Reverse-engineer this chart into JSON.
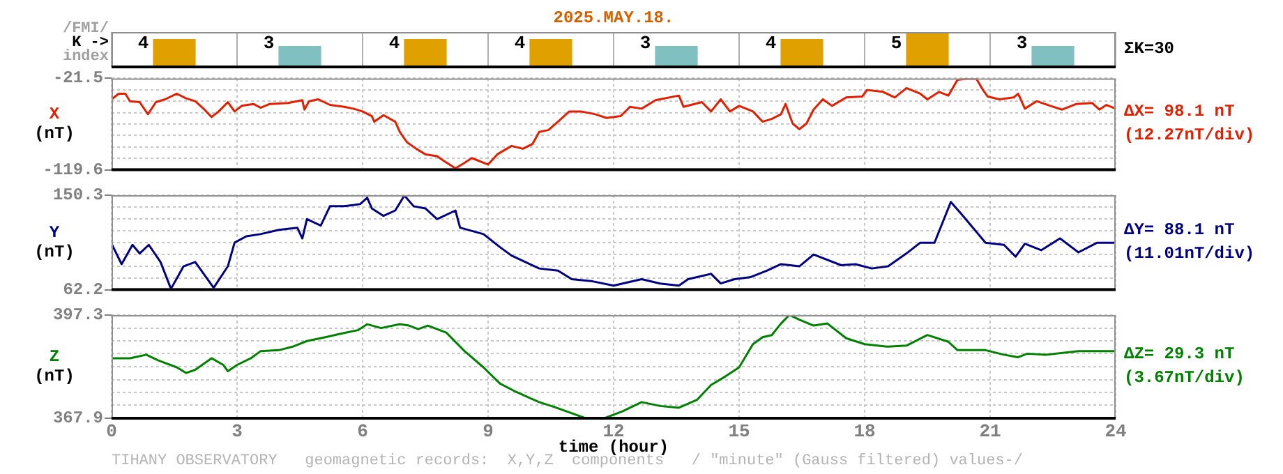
{
  "chart_data": [
    {
      "type": "bar",
      "title": "2025.MAY.18.",
      "ylabel": "/FMI/\nK ->\nindex",
      "categories": [
        null,
        null,
        null,
        null,
        null,
        null,
        null,
        null
      ],
      "values": [
        4,
        3,
        4,
        4,
        3,
        4,
        5,
        3
      ],
      "colors": [
        "#e0a000",
        "#80c0c0",
        "#e0a000",
        "#e0a000",
        "#80c0c0",
        "#e0a000",
        "#e0a000",
        "#80c0c0"
      ],
      "data_labels": true,
      "grid": "x",
      "tick_labels": false,
      "annotations": [
        "ΣK=30"
      ]
    },
    {
      "type": "line",
      "ylabel": "X\n(nT)",
      "xlim": [
        0,
        24
      ],
      "xticks": [
        0,
        3,
        6,
        9,
        12,
        15,
        18,
        21,
        24
      ],
      "ylim": [
        -119.6,
        -21.5
      ],
      "yticks": [
        -21.5,
        {
          "value": -33.8,
          "label": null
        },
        {
          "value": -46.0,
          "label": null
        },
        {
          "value": -58.3,
          "label": null
        },
        {
          "value": -70.6,
          "label": null
        },
        {
          "value": -82.8,
          "label": null
        },
        {
          "value": -95.1,
          "label": null
        },
        {
          "value": -107.3,
          "label": null
        },
        -119.6
      ],
      "grid": true,
      "tick_labels": "y",
      "annotations": [
        "ΔX= 98.1 nT",
        "(12.27nT/div)"
      ],
      "x": [
        0,
        0.17,
        0.33,
        0.44,
        0.67,
        0.87,
        1.06,
        1.28,
        1.56,
        1.78,
        2.0,
        2.22,
        2.39,
        2.56,
        2.78,
        2.94,
        3.11,
        3.39,
        3.56,
        3.78,
        4.22,
        4.56,
        4.61,
        4.72,
        4.94,
        5.22,
        5.56,
        5.78,
        6.0,
        6.22,
        6.28,
        6.5,
        6.78,
        6.89,
        7.06,
        7.28,
        7.5,
        7.78,
        7.94,
        8.22,
        8.44,
        8.61,
        9.0,
        9.22,
        9.56,
        9.83,
        10.06,
        10.22,
        10.44,
        10.67,
        10.94,
        11.22,
        11.56,
        11.83,
        12.17,
        12.39,
        12.67,
        13.0,
        13.56,
        13.67,
        14.11,
        14.33,
        14.56,
        14.78,
        15.0,
        15.33,
        15.56,
        15.78,
        16.0,
        16.11,
        16.28,
        16.44,
        16.61,
        16.78,
        17.0,
        17.22,
        17.56,
        17.94,
        18.06,
        18.44,
        18.72,
        19.0,
        19.33,
        19.5,
        19.78,
        20.0,
        20.22,
        20.44,
        20.67,
        20.83,
        20.94,
        21.22,
        21.56,
        21.67,
        21.83,
        22.11,
        22.44,
        22.72,
        23.06,
        23.44,
        23.61,
        23.78,
        24.0
      ],
      "series": [
        {
          "color": "#e02000",
          "values": [
            -44,
            -38,
            -38,
            -46,
            -47,
            -60,
            -47,
            -44,
            -38,
            -43,
            -46,
            -55,
            -63,
            -57,
            -47,
            -57,
            -51,
            -49,
            -53,
            -49,
            -48,
            -45,
            -55,
            -46,
            -44,
            -50,
            -52,
            -54,
            -57,
            -62,
            -68,
            -61,
            -68,
            -79,
            -90,
            -97,
            -103,
            -105,
            -110,
            -118,
            -112,
            -107,
            -114,
            -103,
            -94,
            -97,
            -92,
            -79,
            -77,
            -68,
            -57,
            -57,
            -60,
            -64,
            -62,
            -52,
            -54,
            -45,
            -40,
            -52,
            -47,
            -57,
            -44,
            -57,
            -51,
            -57,
            -68,
            -65,
            -60,
            -49,
            -70,
            -76,
            -70,
            -55,
            -44,
            -51,
            -42,
            -41,
            -34,
            -36,
            -42,
            -32,
            -38,
            -44,
            -36,
            -40,
            -23,
            -22,
            -22,
            -34,
            -41,
            -44,
            -42,
            -38,
            -54,
            -46,
            -51,
            -55,
            -49,
            -48,
            -55,
            -50,
            -54
          ]
        }
      ]
    },
    {
      "type": "line",
      "ylabel": "Y\n(nT)",
      "xlim": [
        0,
        24
      ],
      "xticks": [
        0,
        3,
        6,
        9,
        12,
        15,
        18,
        21,
        24
      ],
      "ylim": [
        62.2,
        150.3
      ],
      "yticks": [
        62.2,
        {
          "value": 73.2,
          "label": null
        },
        {
          "value": 84.2,
          "label": null
        },
        {
          "value": 95.2,
          "label": null
        },
        {
          "value": 106.3,
          "label": null
        },
        {
          "value": 117.3,
          "label": null
        },
        {
          "value": 128.3,
          "label": null
        },
        {
          "value": 139.3,
          "label": null
        },
        150.3
      ],
      "grid": true,
      "tick_labels": "y",
      "annotations": [
        "ΔY= 88.1 nT",
        "(11.01nT/div)"
      ],
      "x": [
        0,
        0.24,
        0.5,
        0.67,
        0.89,
        1.17,
        1.42,
        1.72,
        2.0,
        2.22,
        2.44,
        2.78,
        2.94,
        3.22,
        3.56,
        4.0,
        4.44,
        4.56,
        4.67,
        5.0,
        5.22,
        5.56,
        5.94,
        6.11,
        6.22,
        6.5,
        6.78,
        7.0,
        7.22,
        7.5,
        7.78,
        8.22,
        8.33,
        8.89,
        9.28,
        9.56,
        9.89,
        10.22,
        10.67,
        11.0,
        11.5,
        12.0,
        12.67,
        13.11,
        13.56,
        13.78,
        14.33,
        14.56,
        14.89,
        15.28,
        15.67,
        16.0,
        16.44,
        16.78,
        17.44,
        17.78,
        18.17,
        18.56,
        19.0,
        19.33,
        19.67,
        20.06,
        20.33,
        20.89,
        21.33,
        21.61,
        21.83,
        22.22,
        22.67,
        23.11,
        23.56,
        24.0
      ],
      "series": [
        {
          "color": "#000080",
          "values": [
            105,
            86,
            104,
            96,
            104,
            88,
            63,
            84,
            88,
            76,
            64,
            84,
            106,
            112,
            114,
            118,
            120,
            110,
            128,
            122,
            140,
            140,
            142,
            148,
            138,
            131,
            136,
            150,
            140,
            138,
            128,
            136,
            120,
            114,
            102,
            94,
            88,
            82,
            80,
            72,
            70,
            66,
            72,
            68,
            66,
            72,
            77,
            68,
            72,
            74,
            80,
            86,
            84,
            95,
            85,
            86,
            82,
            84,
            96,
            106,
            106,
            144,
            132,
            106,
            104,
            93,
            105,
            99,
            110,
            97,
            106,
            106
          ]
        }
      ]
    },
    {
      "type": "line",
      "ylabel": "Z\n(nT)",
      "xlabel": "time (hour)",
      "xlim": [
        0,
        24
      ],
      "xticks": [
        0,
        3,
        6,
        9,
        12,
        15,
        18,
        21,
        24
      ],
      "ylim": [
        367.9,
        397.3
      ],
      "yticks": [
        367.9,
        {
          "value": 371.6,
          "label": null
        },
        {
          "value": 375.3,
          "label": null
        },
        {
          "value": 378.9,
          "label": null
        },
        {
          "value": 382.6,
          "label": null
        },
        {
          "value": 386.3,
          "label": null
        },
        {
          "value": 389.9,
          "label": null
        },
        {
          "value": 393.6,
          "label": null
        },
        397.3
      ],
      "grid": true,
      "annotations": [
        "ΔZ= 29.3 nT",
        "(3.67nT/div)",
        "TIHANY OBSERVATORY   geomagnetic records:  X,Y,Z  components   / \"minute\" (Gauss filtered) values-/"
      ],
      "x": [
        0,
        0.44,
        0.83,
        1.11,
        1.56,
        1.78,
        2.0,
        2.39,
        2.67,
        2.78,
        3.0,
        3.33,
        3.56,
        4.0,
        4.33,
        4.67,
        5.11,
        5.44,
        5.89,
        6.11,
        6.44,
        6.89,
        7.11,
        7.33,
        7.56,
        8.0,
        8.44,
        8.89,
        9.28,
        9.67,
        10.22,
        10.56,
        11.33,
        11.78,
        12.22,
        12.67,
        13.11,
        13.56,
        14.0,
        14.33,
        14.67,
        15.0,
        15.33,
        15.56,
        15.78,
        16.0,
        16.2,
        16.44,
        16.78,
        17.11,
        17.56,
        18.0,
        18.56,
        19.0,
        19.5,
        20.0,
        20.22,
        20.89,
        21.33,
        21.67,
        21.89,
        22.33,
        23.11,
        24.0
      ],
      "series": [
        {
          "color": "#008000",
          "values": [
            385.0,
            385.0,
            386.0,
            384.4,
            382.4,
            380.8,
            381.7,
            385.0,
            383.1,
            381.3,
            383.1,
            385.0,
            387.0,
            387.3,
            388.3,
            389.9,
            391.0,
            391.9,
            393.0,
            394.7,
            393.6,
            394.7,
            394.3,
            393.3,
            394.3,
            392.3,
            387.0,
            382.4,
            377.8,
            375.4,
            372.5,
            371.2,
            367.9,
            367.9,
            369.9,
            372.5,
            371.4,
            370.9,
            373.2,
            377.4,
            379.8,
            382.4,
            389.0,
            391.0,
            391.6,
            394.9,
            397.3,
            396.0,
            394.3,
            394.9,
            390.7,
            389.0,
            388.3,
            388.6,
            391.6,
            389.7,
            387.3,
            387.3,
            386.0,
            385.3,
            386.3,
            386.0,
            387.0,
            387.0
          ]
        }
      ]
    }
  ]
}
